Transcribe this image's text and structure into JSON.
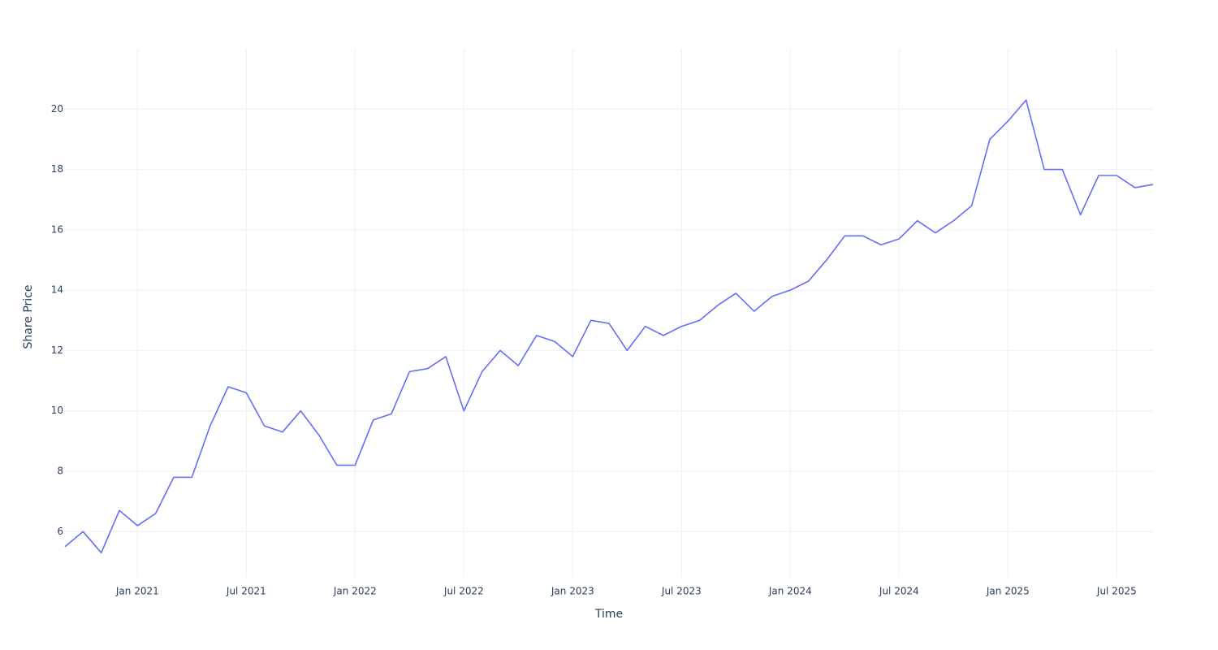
{
  "chart_data": {
    "type": "line",
    "x_label": "Time",
    "y_label": "Share Price",
    "x": [
      "2020-09",
      "2020-10",
      "2020-11",
      "2020-12",
      "2021-01",
      "2021-02",
      "2021-03",
      "2021-04",
      "2021-05",
      "2021-06",
      "2021-07",
      "2021-08",
      "2021-09",
      "2021-10",
      "2021-11",
      "2021-12",
      "2022-01",
      "2022-02",
      "2022-03",
      "2022-04",
      "2022-05",
      "2022-06",
      "2022-07",
      "2022-08",
      "2022-09",
      "2022-10",
      "2022-11",
      "2022-12",
      "2023-01",
      "2023-02",
      "2023-03",
      "2023-04",
      "2023-05",
      "2023-06",
      "2023-07",
      "2023-08",
      "2023-09",
      "2023-10",
      "2023-11",
      "2023-12",
      "2024-01",
      "2024-02",
      "2024-03",
      "2024-04",
      "2024-05",
      "2024-06",
      "2024-07",
      "2024-08",
      "2024-09",
      "2024-10",
      "2024-11",
      "2024-12",
      "2025-01",
      "2025-02",
      "2025-03",
      "2025-04",
      "2025-05",
      "2025-06",
      "2025-07",
      "2025-08",
      "2025-09"
    ],
    "series": [
      {
        "name": "Share Price",
        "color": "#636efa",
        "values": [
          5.5,
          6.0,
          5.3,
          6.7,
          6.2,
          6.6,
          7.8,
          7.8,
          9.5,
          10.8,
          10.6,
          9.5,
          9.3,
          10.0,
          9.2,
          8.2,
          8.2,
          9.7,
          9.9,
          11.3,
          11.4,
          11.8,
          10.0,
          11.3,
          12.0,
          11.5,
          12.5,
          12.3,
          11.8,
          13.0,
          12.9,
          12.0,
          12.8,
          12.5,
          12.8,
          13.0,
          13.5,
          13.9,
          13.3,
          13.8,
          14.0,
          14.3,
          15.0,
          15.8,
          15.8,
          15.5,
          15.7,
          16.3,
          15.9,
          16.3,
          16.8,
          19.0,
          19.6,
          20.3,
          18.0,
          18.0,
          16.5,
          17.8,
          17.8,
          17.4,
          17.5
        ]
      }
    ],
    "xlim": [
      "2020-09",
      "2025-09"
    ],
    "xticks": [
      {
        "value": "2021-01",
        "label": "Jan 2021"
      },
      {
        "value": "2021-07",
        "label": "Jul 2021"
      },
      {
        "value": "2022-01",
        "label": "Jan 2022"
      },
      {
        "value": "2022-07",
        "label": "Jul 2022"
      },
      {
        "value": "2023-01",
        "label": "Jan 2023"
      },
      {
        "value": "2023-07",
        "label": "Jul 2023"
      },
      {
        "value": "2024-01",
        "label": "Jan 2024"
      },
      {
        "value": "2024-07",
        "label": "Jul 2024"
      },
      {
        "value": "2025-01",
        "label": "Jan 2025"
      },
      {
        "value": "2025-07",
        "label": "Jul 2025"
      }
    ],
    "ylim": [
      4.5,
      22
    ],
    "yticks": [
      6,
      8,
      10,
      12,
      14,
      16,
      18,
      20
    ],
    "grid": true
  }
}
